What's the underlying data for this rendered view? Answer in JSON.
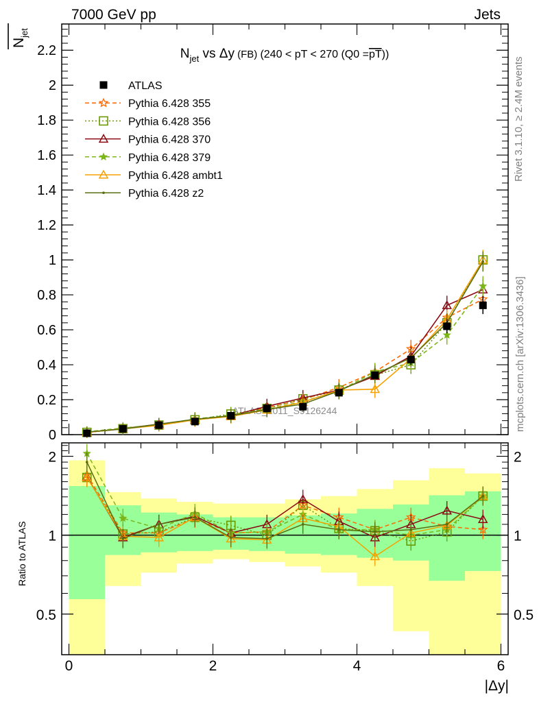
{
  "header": {
    "energy_label": "7000 GeV pp",
    "process_label": "Jets"
  },
  "side_labels": {
    "rivet": "Rivet 3.1.10, ≥ 2.4M events",
    "mcplots": "mcplots.cern.ch [arXiv:1306.3436]"
  },
  "watermark": "ATLAS_2011_S9126244",
  "chart_data": [
    {
      "type": "line",
      "title_main": "N",
      "title_sub": "jet",
      "title_rest": " vs Δy",
      "title_small": " (FB) ",
      "title_cond": "(240 < pT < 270 (Q0 =",
      "title_over": "pT",
      "title_end": "))",
      "ylabel_main": "N",
      "ylabel_sub": "jet",
      "xlabel": "|Δy|",
      "xlim": [
        -0.1,
        6.1
      ],
      "ylim": [
        0,
        2.35
      ],
      "yticks": [
        "0",
        "0.2",
        "0.4",
        "0.6",
        "0.8",
        "1",
        "1.2",
        "1.4",
        "1.6",
        "1.8",
        "2",
        "2.2"
      ],
      "x": [
        0.25,
        0.75,
        1.25,
        1.75,
        2.25,
        2.75,
        3.25,
        3.75,
        4.25,
        4.75,
        5.25,
        5.75
      ],
      "legend_position": "top-left",
      "reference": {
        "name": "ATLAS",
        "color": "#000000",
        "values": [
          0.008,
          0.033,
          0.054,
          0.075,
          0.108,
          0.15,
          0.16,
          0.24,
          0.34,
          0.43,
          0.62,
          0.74
        ],
        "errors": [
          0.002,
          0.004,
          0.005,
          0.006,
          0.008,
          0.01,
          0.012,
          0.015,
          0.02,
          0.03,
          0.04,
          0.05
        ]
      },
      "series": [
        {
          "name": "Pythia 6.428 355",
          "color": "#ff6a00",
          "dash": "6,4",
          "marker": "star",
          "values": [
            0.013,
            0.034,
            0.056,
            0.085,
            0.111,
            0.155,
            0.2,
            0.27,
            0.36,
            0.49,
            0.67,
            0.775
          ]
        },
        {
          "name": "Pythia 6.428 356",
          "color": "#6b9a00",
          "dash": "2,3",
          "marker": "square",
          "values": [
            0.013,
            0.034,
            0.055,
            0.085,
            0.118,
            0.15,
            0.205,
            0.255,
            0.34,
            0.4,
            0.64,
            1.0
          ]
        },
        {
          "name": "Pythia 6.428 370",
          "color": "#8b0a14",
          "dash": "",
          "marker": "triangle",
          "values": [
            0.013,
            0.034,
            0.06,
            0.085,
            0.108,
            0.162,
            0.21,
            0.255,
            0.335,
            0.45,
            0.74,
            0.83
          ]
        },
        {
          "name": "Pythia 6.428 379",
          "color": "#7cb518",
          "dash": "6,4",
          "marker": "smallstar",
          "values": [
            0.016,
            0.038,
            0.057,
            0.09,
            0.112,
            0.145,
            0.19,
            0.25,
            0.36,
            0.41,
            0.57,
            0.85
          ]
        },
        {
          "name": "Pythia 6.428 ambt1",
          "color": "#f5a000",
          "dash": "",
          "marker": "triangle",
          "values": [
            0.013,
            0.033,
            0.053,
            0.085,
            0.104,
            0.142,
            0.186,
            0.255,
            0.26,
            0.435,
            0.66,
            1.0
          ]
        },
        {
          "name": "Pythia 6.428 z2",
          "color": "#5a6e10",
          "dash": "",
          "marker": "dot",
          "values": [
            0.015,
            0.032,
            0.06,
            0.088,
            0.108,
            0.144,
            0.175,
            0.25,
            0.345,
            0.44,
            0.64,
            0.99
          ]
        }
      ]
    },
    {
      "type": "line",
      "ylabel": "Ratio to ATLAS",
      "xlabel": "|Δy|",
      "xlim": [
        -0.1,
        6.1
      ],
      "ylim": [
        0.35,
        2.25
      ],
      "yticks": [
        "0.5",
        "1",
        "2"
      ],
      "xticks": [
        "0",
        "2",
        "4",
        "6"
      ],
      "bins": [
        [
          0.0,
          0.5
        ],
        [
          0.5,
          1.0
        ],
        [
          1.0,
          1.5
        ],
        [
          1.5,
          2.0
        ],
        [
          2.0,
          2.5
        ],
        [
          2.5,
          3.0
        ],
        [
          3.0,
          3.5
        ],
        [
          3.5,
          4.0
        ],
        [
          4.0,
          4.5
        ],
        [
          4.5,
          5.0
        ],
        [
          5.0,
          5.5
        ],
        [
          5.5,
          6.0
        ]
      ],
      "band_inner": {
        "color": "#99ff99",
        "low": [
          0.57,
          0.84,
          0.86,
          0.87,
          0.88,
          0.87,
          0.85,
          0.84,
          0.82,
          0.8,
          0.67,
          0.73
        ],
        "high": [
          1.54,
          1.3,
          1.22,
          1.2,
          1.17,
          1.17,
          1.19,
          1.21,
          1.26,
          1.31,
          1.42,
          1.47
        ]
      },
      "band_outer": {
        "color": "#ffff99",
        "low": [
          0.0,
          0.64,
          0.72,
          0.78,
          0.81,
          0.79,
          0.76,
          0.72,
          0.64,
          0.43,
          0.3,
          0.3
        ]
      },
      "band_outer_high": [
        1.93,
        1.46,
        1.38,
        1.34,
        1.32,
        1.32,
        1.37,
        1.41,
        1.5,
        1.62,
        1.8,
        1.72
      ],
      "reference_line": 1,
      "series": [
        {
          "name": "Pythia 6.428 355",
          "values": [
            1.7,
            1.02,
            1.02,
            1.16,
            1.02,
            1.03,
            1.3,
            1.17,
            1.05,
            1.17,
            1.08,
            1.05
          ]
        },
        {
          "name": "Pythia 6.428 356",
          "values": [
            1.66,
            1.01,
            1.03,
            1.17,
            1.09,
            1.0,
            1.3,
            1.06,
            1.04,
            0.95,
            1.03,
            1.41
          ]
        },
        {
          "name": "Pythia 6.428 370",
          "values": [
            1.67,
            0.98,
            1.1,
            1.18,
            1.02,
            1.1,
            1.37,
            1.13,
            0.98,
            1.1,
            1.24,
            1.15
          ]
        },
        {
          "name": "Pythia 6.428 379",
          "values": [
            2.05,
            1.16,
            1.06,
            1.21,
            1.02,
            1.03,
            1.2,
            1.05,
            1.05,
            1.0,
            1.05,
            1.41
          ]
        },
        {
          "name": "Pythia 6.428 ambt1",
          "values": [
            1.66,
            0.99,
            0.98,
            1.17,
            0.97,
            0.96,
            1.16,
            1.08,
            0.83,
            1.02,
            1.09,
            1.41
          ]
        },
        {
          "name": "Pythia 6.428 z2",
          "values": [
            1.9,
            0.97,
            1.1,
            1.17,
            0.98,
            0.97,
            1.1,
            1.05,
            1.03,
            1.05,
            1.1,
            1.41
          ]
        }
      ]
    }
  ]
}
